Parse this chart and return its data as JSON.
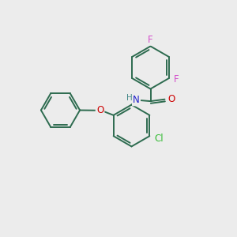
{
  "background_color": "#ececec",
  "bond_color": "#2d6b4f",
  "atom_colors": {
    "F": "#d44fcc",
    "O": "#cc0000",
    "N": "#2222cc",
    "H": "#448888",
    "Cl": "#33bb33"
  },
  "figsize": [
    3.0,
    3.0
  ],
  "dpi": 100,
  "lw": 1.4
}
